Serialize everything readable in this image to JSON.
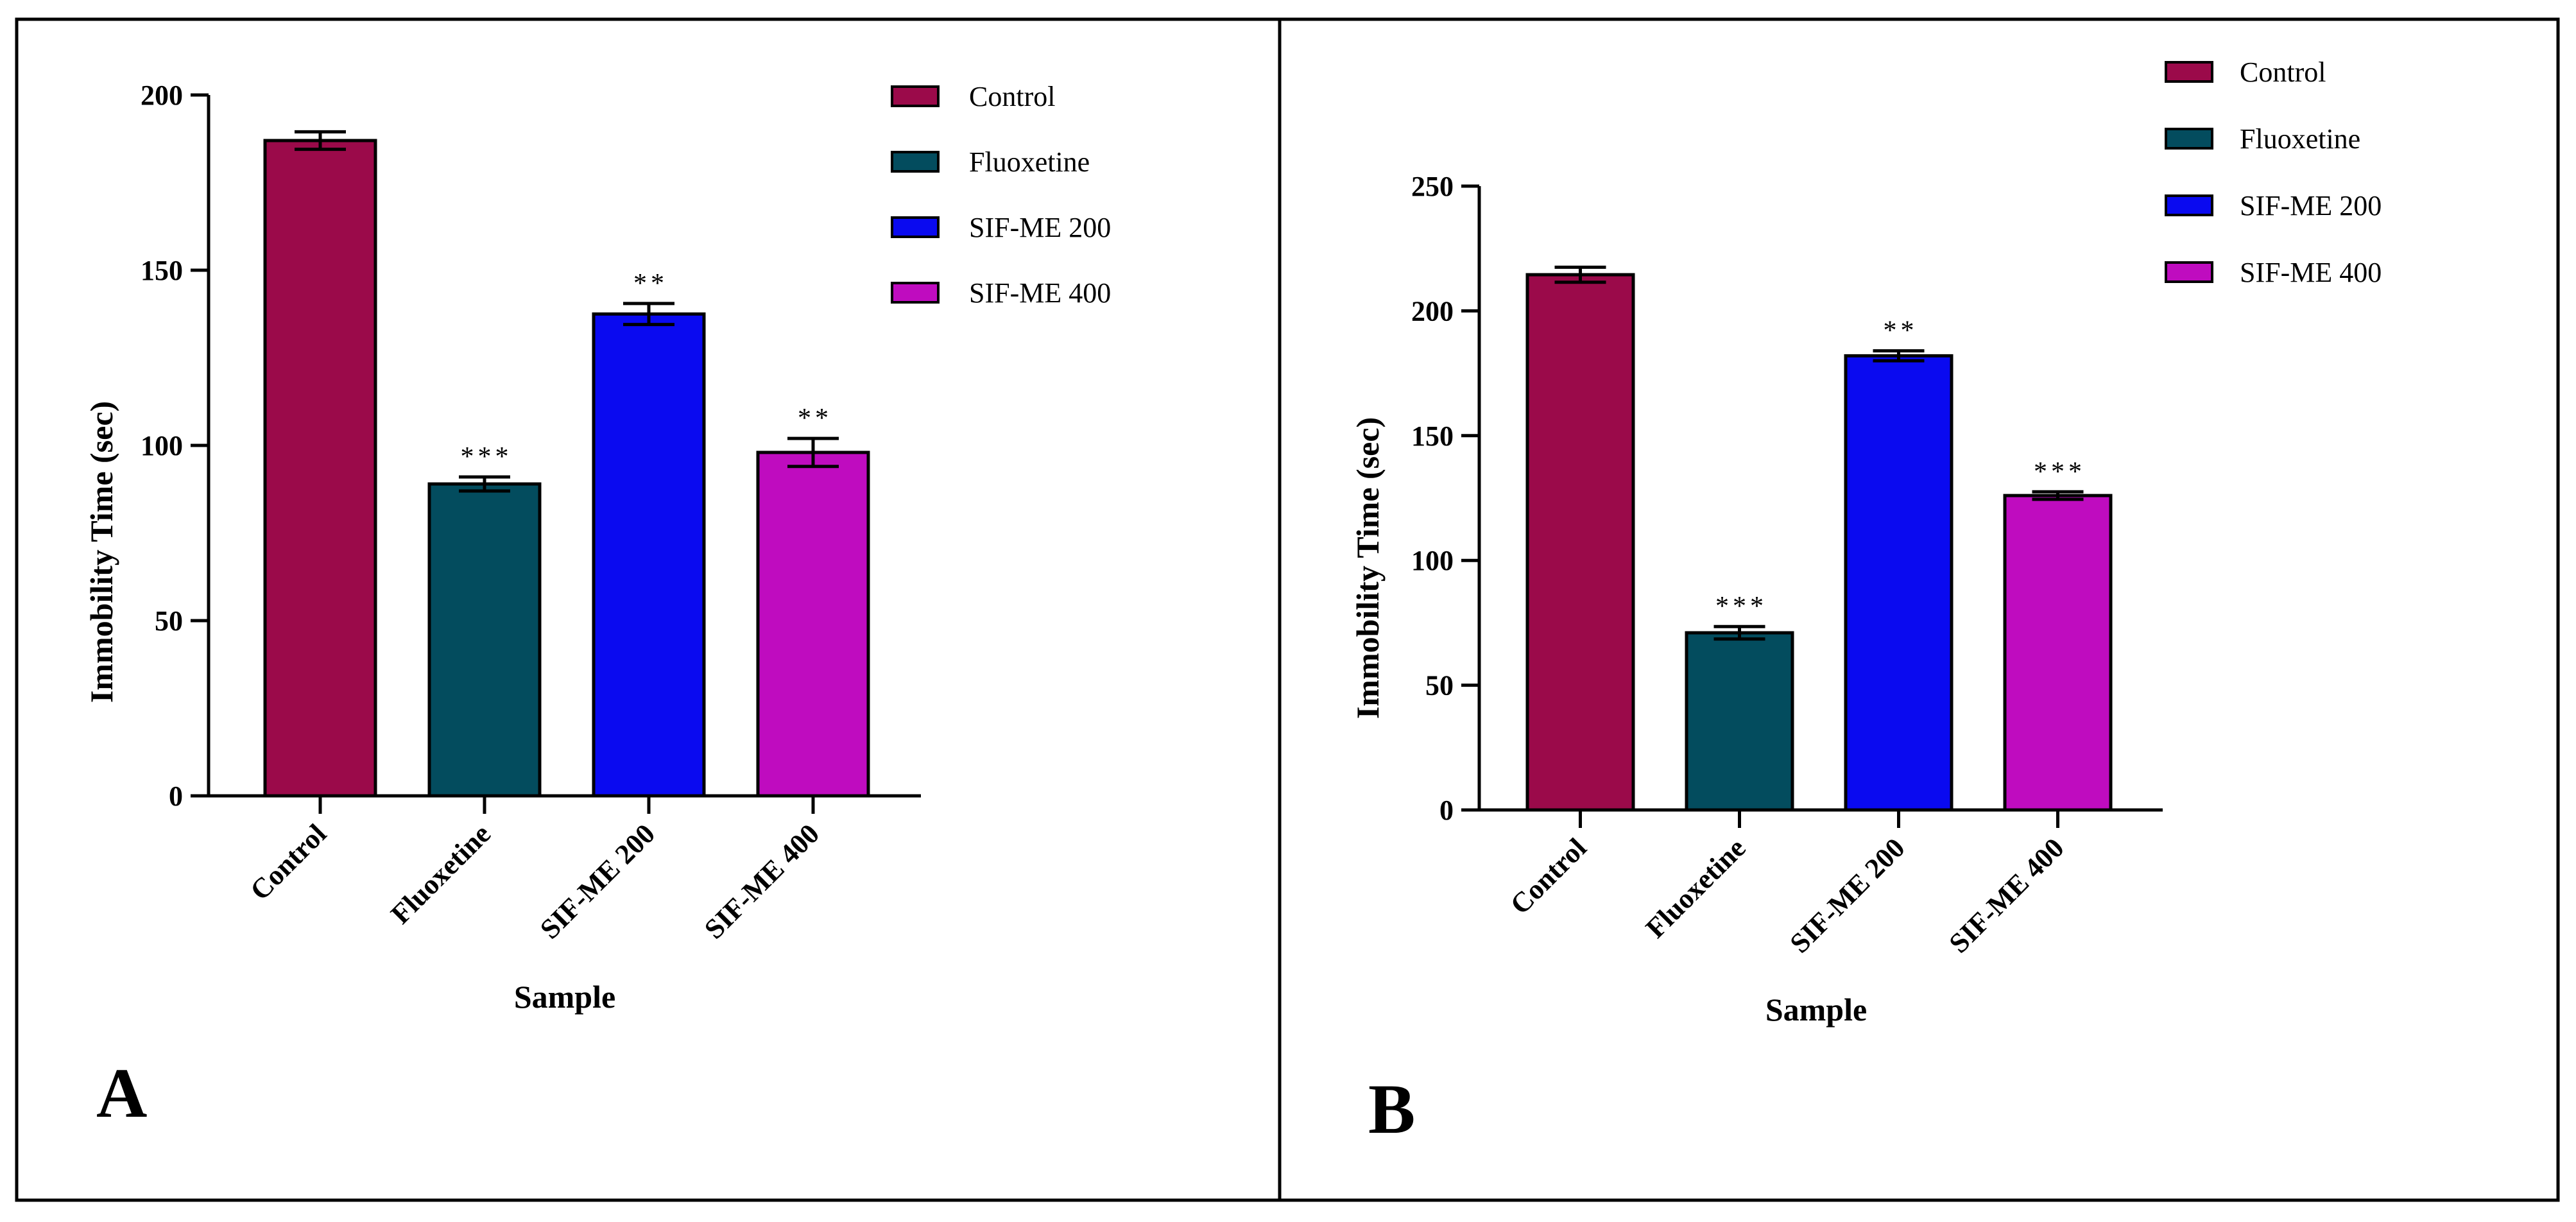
{
  "chart_data": [
    {
      "type": "bar",
      "panel_label": "A",
      "xlabel": "Sample",
      "ylabel": "Immobility Time (sec)",
      "ylim": [
        0,
        200
      ],
      "yticks": [
        0,
        50,
        100,
        150,
        200
      ],
      "categories": [
        "Control",
        "Fluoxetine",
        "SIF-ME 200",
        "SIF-ME 400"
      ],
      "values": [
        187,
        89,
        137.5,
        98
      ],
      "errors": [
        2.5,
        2,
        3,
        4
      ],
      "significance": [
        "",
        "***",
        "**",
        "**"
      ],
      "colors": [
        "#9B0A4A",
        "#034C5E",
        "#0A0AF0",
        "#BF0CBF"
      ],
      "legend": [
        "Control",
        "Fluoxetine",
        "SIF-ME 200",
        "SIF-ME 400"
      ],
      "legend_position": "top-right"
    },
    {
      "type": "bar",
      "panel_label": "B",
      "xlabel": "Sample",
      "ylabel": "Immobility Time (sec)",
      "ylim": [
        0,
        250
      ],
      "yticks": [
        0,
        50,
        100,
        150,
        200,
        250
      ],
      "categories": [
        "Control",
        "Fluoxetine",
        "SIF-ME 200",
        "SIF-ME 400"
      ],
      "values": [
        214.5,
        71,
        182,
        126
      ],
      "errors": [
        3,
        2.5,
        2,
        1.5
      ],
      "significance": [
        "",
        "***",
        "**",
        "***"
      ],
      "colors": [
        "#9B0A4A",
        "#034C5E",
        "#0A0AF0",
        "#BF0CBF"
      ],
      "legend": [
        "Control",
        "Fluoxetine",
        "SIF-ME 200",
        "SIF-ME 400"
      ],
      "legend_position": "top-right"
    }
  ]
}
